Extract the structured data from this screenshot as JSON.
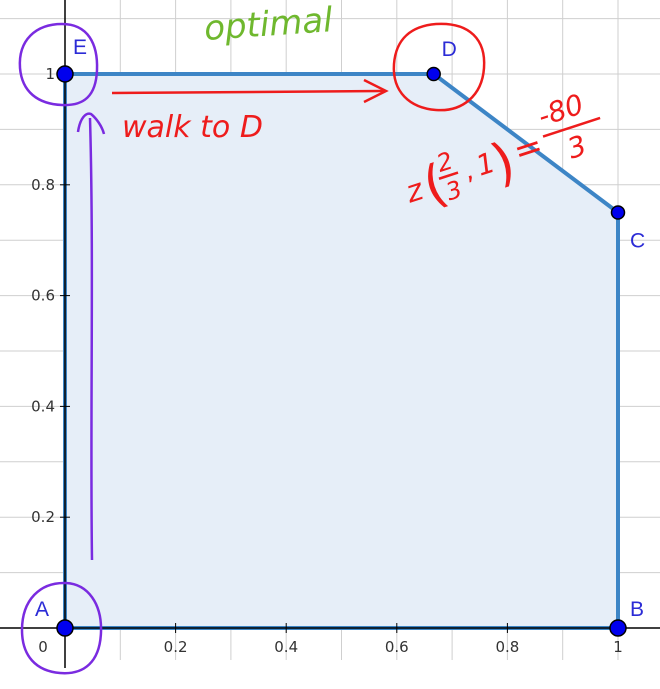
{
  "chart_data": {
    "type": "polygon",
    "xlim": [
      0,
      1.0
    ],
    "ylim": [
      0,
      1.0
    ],
    "grid": true,
    "x_ticks": [
      {
        "value": 0,
        "label": "0"
      },
      {
        "value": 0.2,
        "label": "0.2"
      },
      {
        "value": 0.4,
        "label": "0.4"
      },
      {
        "value": 0.6,
        "label": "0.6"
      },
      {
        "value": 0.8,
        "label": "0.8"
      },
      {
        "value": 1.0,
        "label": "1"
      }
    ],
    "y_ticks": [
      {
        "value": 0.2,
        "label": "0.2"
      },
      {
        "value": 0.4,
        "label": "0.4"
      },
      {
        "value": 0.6,
        "label": "0.6"
      },
      {
        "value": 0.8,
        "label": "0.8"
      },
      {
        "value": 1.0,
        "label": "1"
      }
    ],
    "vertices": [
      {
        "name": "A",
        "x": 0,
        "y": 0
      },
      {
        "name": "B",
        "x": 1,
        "y": 0
      },
      {
        "name": "C",
        "x": 1,
        "y": 0.75
      },
      {
        "name": "D",
        "x": 0.6667,
        "y": 1
      },
      {
        "name": "E",
        "x": 0,
        "y": 1
      }
    ],
    "colors": {
      "polygon_fill": "#e6eef8",
      "polygon_edge": "#3d85c6",
      "vertex": "#0000ee",
      "vertex_label": "#2b2bd6",
      "grid": "#cfcfcf",
      "axis": "#000000",
      "annotation_red": "#ee1c1c",
      "annotation_purple": "#7a2be0",
      "annotation_green": "#6fb82e"
    }
  },
  "annotations": {
    "optimal": "optimal",
    "walk": "walk to D",
    "z_prefix": "z",
    "z_x_num": "2",
    "z_x_den": "3",
    "z_y": "1",
    "z_equals": "=",
    "z_val_num": "-80",
    "z_val_den": "3"
  }
}
